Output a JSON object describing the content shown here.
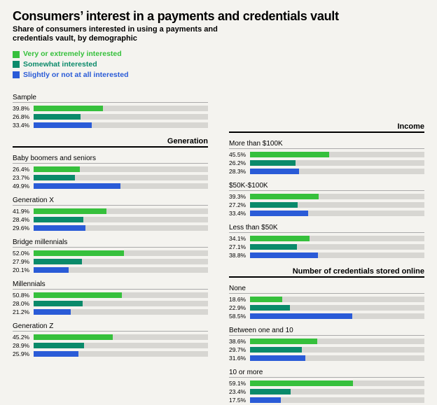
{
  "title": "Consumers’ interest in a payments and credentials vault",
  "subtitle": "Share of consumers interested in using a payments and credentials vault, by demographic",
  "legend": [
    {
      "label": "Very or extremely interested",
      "color": "#36c03c"
    },
    {
      "label": "Somewhat interested",
      "color": "#0a8a6a"
    },
    {
      "label": "Slightly or not at all interested",
      "color": "#2a5bd7"
    }
  ],
  "bar_bg": "#d7d6d2",
  "scale_max": 100,
  "left": [
    {
      "section": null,
      "groups": [
        {
          "label": "Sample",
          "values": [
            39.8,
            26.8,
            33.4
          ]
        }
      ]
    },
    {
      "section": "Generation",
      "groups": [
        {
          "label": "Baby boomers and seniors",
          "values": [
            26.4,
            23.7,
            49.9
          ]
        },
        {
          "label": "Generation X",
          "values": [
            41.9,
            28.4,
            29.6
          ]
        },
        {
          "label": "Bridge millennials",
          "values": [
            52.0,
            27.9,
            20.1
          ]
        },
        {
          "label": "Millennials",
          "values": [
            50.8,
            28.0,
            21.2
          ]
        },
        {
          "label": "Generation Z",
          "values": [
            45.2,
            28.9,
            25.9
          ]
        }
      ]
    }
  ],
  "right": [
    {
      "section": "Income",
      "groups": [
        {
          "label": "More than $100K",
          "values": [
            45.5,
            26.2,
            28.3
          ]
        },
        {
          "label": "$50K-$100K",
          "values": [
            39.3,
            27.2,
            33.4
          ]
        },
        {
          "label": "Less than $50K",
          "values": [
            34.1,
            27.1,
            38.8
          ]
        }
      ]
    },
    {
      "section": "Number of credentials stored online",
      "groups": [
        {
          "label": "None",
          "values": [
            18.6,
            22.9,
            58.5
          ]
        },
        {
          "label": "Between one and 10",
          "values": [
            38.6,
            29.7,
            31.6
          ]
        },
        {
          "label": "10 or more",
          "values": [
            59.1,
            23.4,
            17.5
          ]
        }
      ]
    }
  ]
}
